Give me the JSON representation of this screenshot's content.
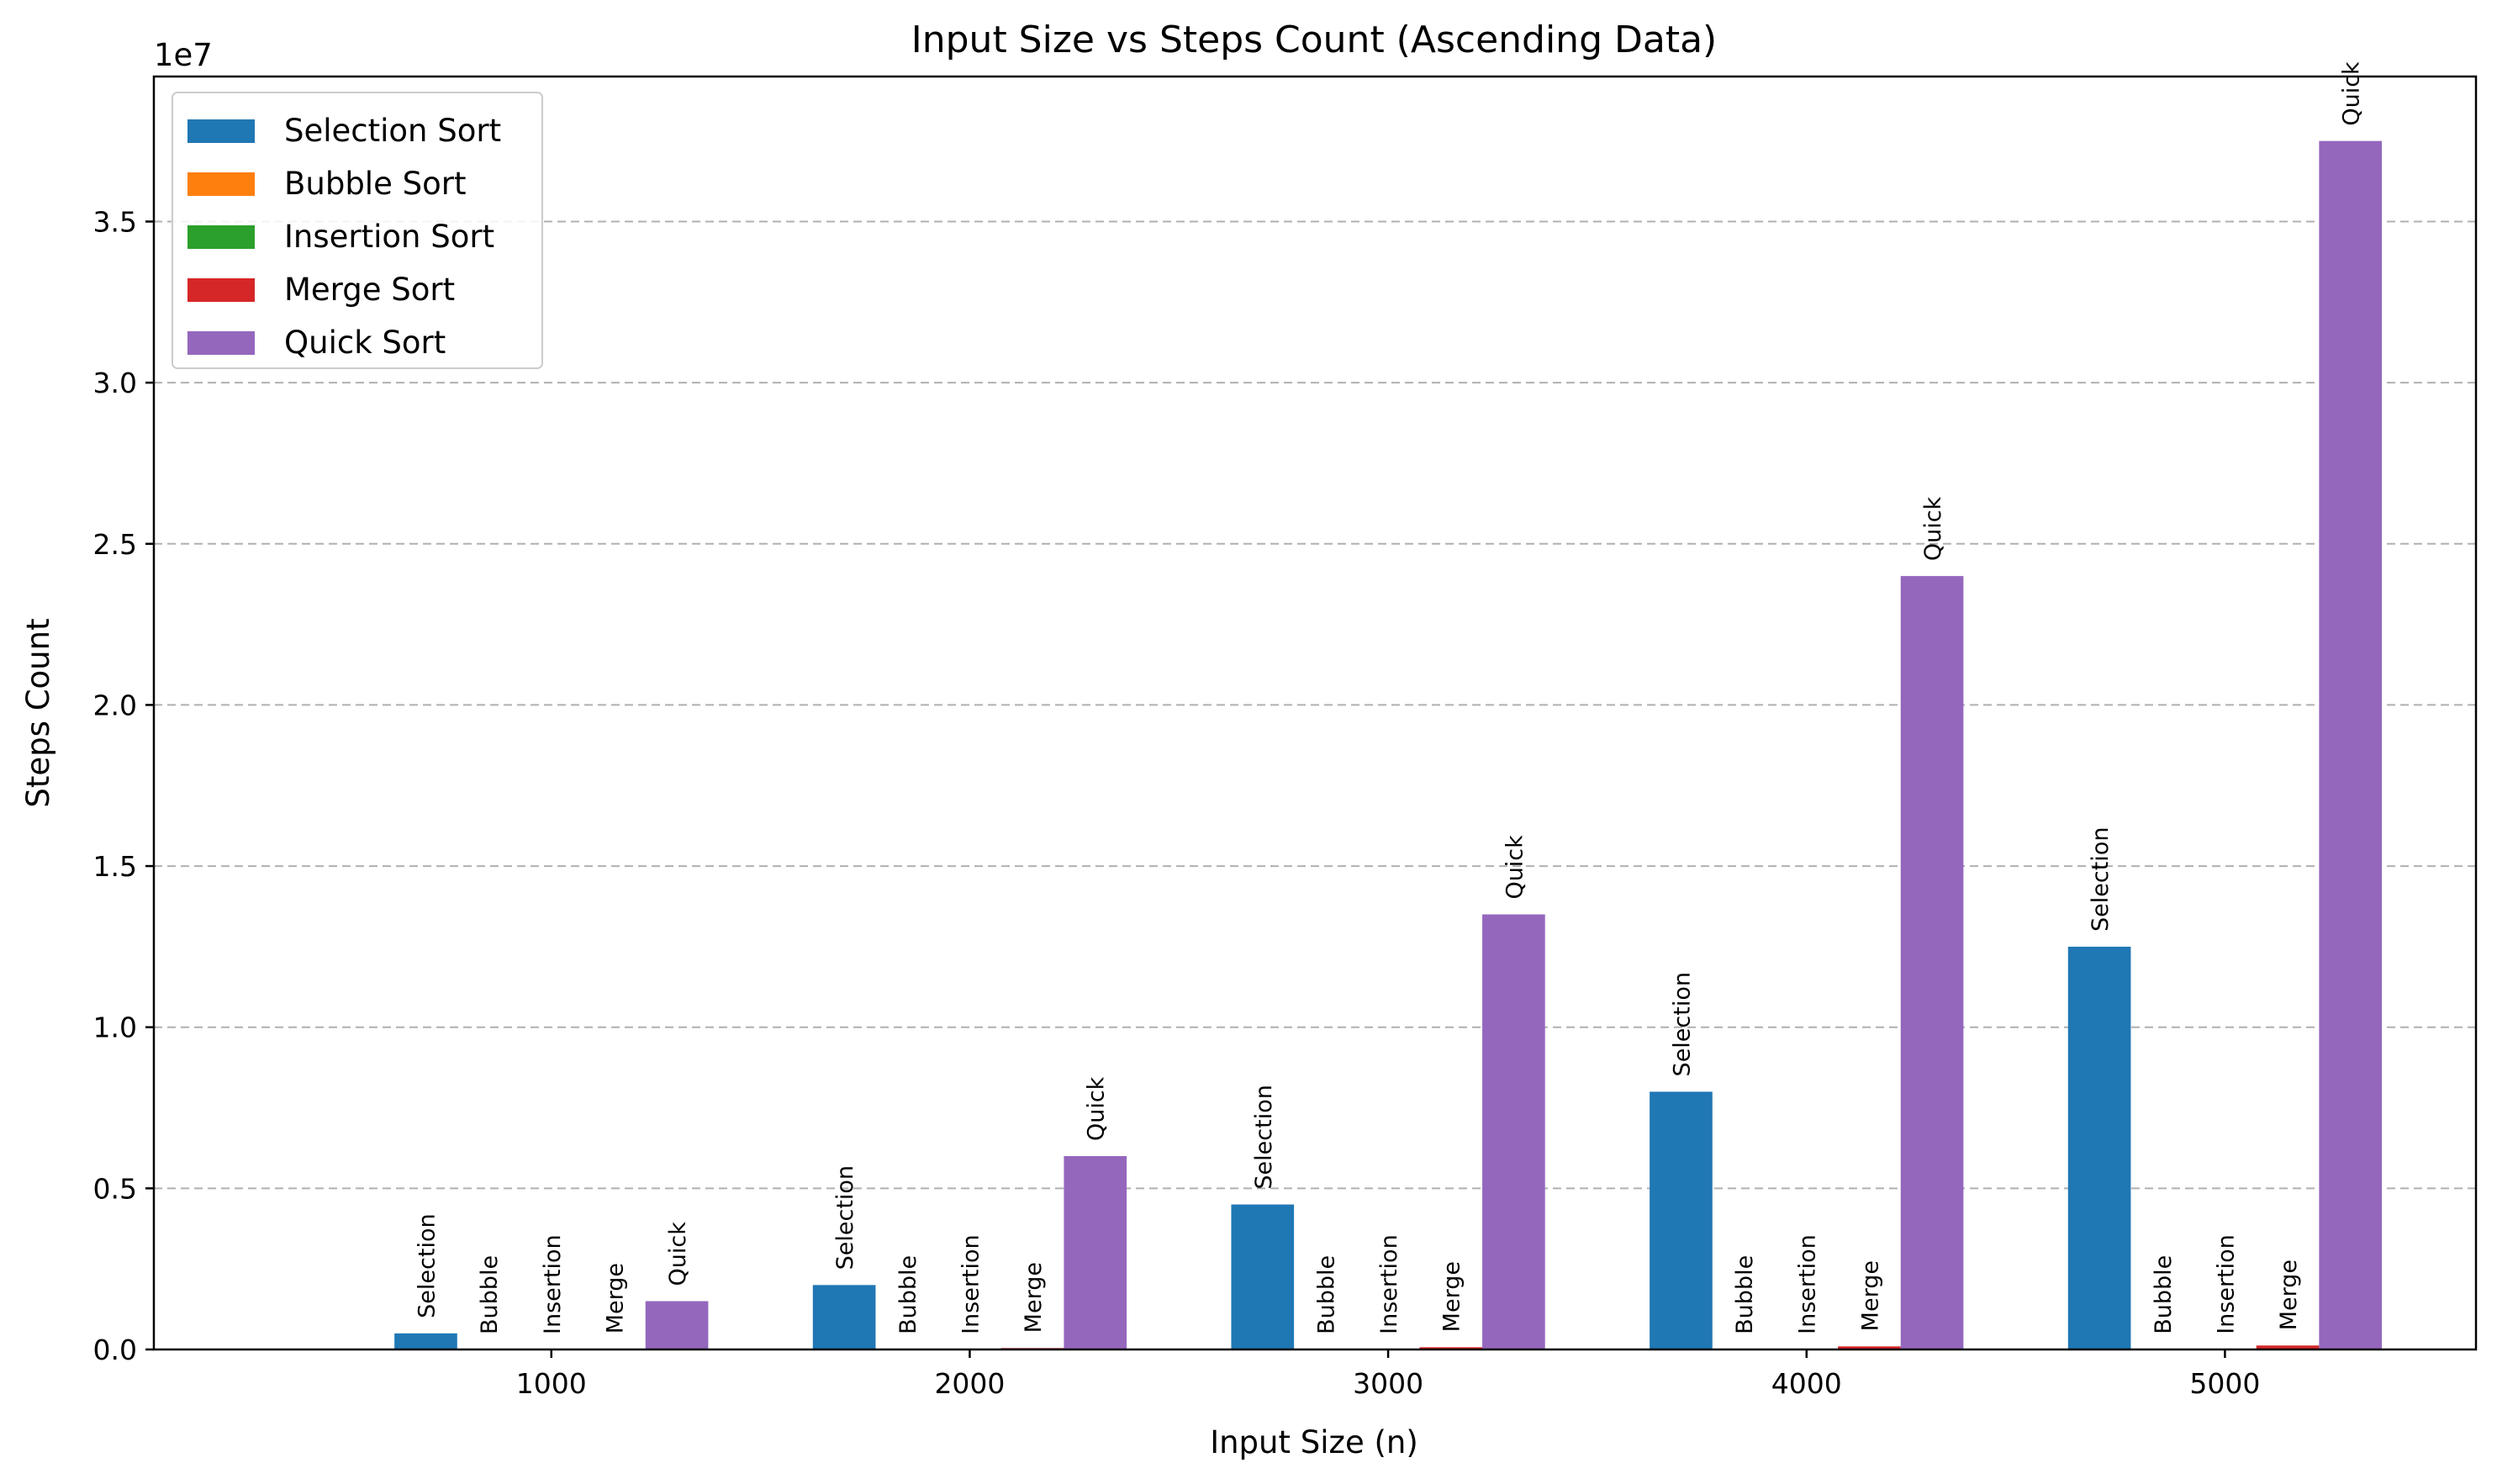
{
  "chart_data": {
    "type": "bar",
    "title": "Input Size vs Steps Count (Ascending Data)",
    "xlabel": "Input Size (n)",
    "ylabel": "Steps Count",
    "y_scale_label": "1e7",
    "categories": [
      "1000",
      "2000",
      "3000",
      "4000",
      "5000"
    ],
    "yticks": [
      "0.0",
      "0.5",
      "1.0",
      "1.5",
      "2.0",
      "2.5",
      "3.0",
      "3.5"
    ],
    "ylim": [
      0,
      39500000
    ],
    "grid": "y-dashed",
    "legend_position": "top-left",
    "series": [
      {
        "name": "Selection Sort",
        "short": "Selection",
        "color": "#1f77b4",
        "values": [
          499500,
          1999000,
          4498500,
          7998000,
          12497500
        ]
      },
      {
        "name": "Bubble Sort",
        "short": "Bubble",
        "color": "#ff7f0e",
        "values": [
          999,
          1999,
          2999,
          3999,
          4999
        ]
      },
      {
        "name": "Insertion Sort",
        "short": "Insertion",
        "color": "#2ca02c",
        "values": [
          999,
          1999,
          2999,
          3999,
          4999
        ]
      },
      {
        "name": "Merge Sort",
        "short": "Merge",
        "color": "#d62728",
        "values": [
          19952,
          43904,
          69808,
          95808,
          123616
        ]
      },
      {
        "name": "Quick Sort",
        "short": "Quick",
        "color": "#9467bd",
        "values": [
          1500000,
          6000000,
          13500000,
          24000000,
          37500000
        ]
      }
    ]
  }
}
